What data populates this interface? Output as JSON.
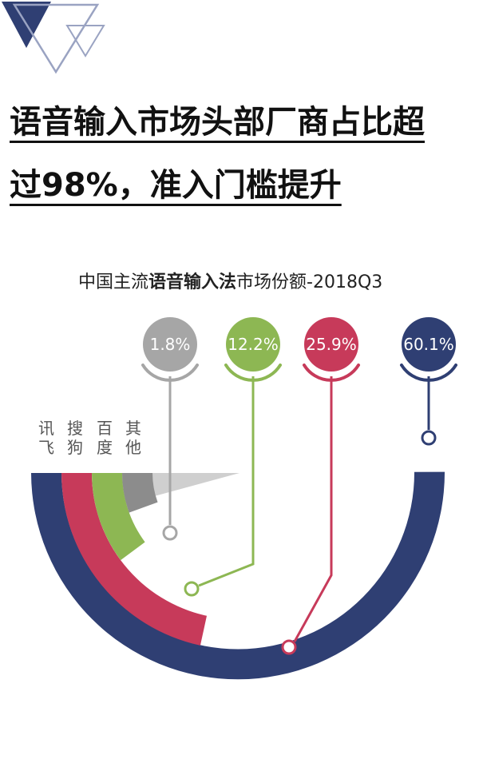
{
  "headline": {
    "line1": "语音输入市场头部厂商占比超",
    "line2": "过98%，准入门槛提升"
  },
  "chart_title": {
    "prefix": "中国主流",
    "bold": "语音输入法",
    "suffix": "市场份额-2018Q3"
  },
  "chart_data": {
    "type": "pie",
    "title": "中国主流语音输入法市场份额-2018Q3",
    "categories": [
      "讯飞",
      "搜狗",
      "百度",
      "其他"
    ],
    "values": [
      60.1,
      25.9,
      12.2,
      1.8
    ],
    "labels": [
      "60.1%",
      "25.9%",
      "12.2%",
      "1.8%"
    ],
    "colors": [
      "#2f3f73",
      "#c73a5a",
      "#8db753",
      "#8c8c8c"
    ]
  },
  "legend": {
    "names": [
      "讯飞",
      "搜狗",
      "百度",
      "其他"
    ]
  },
  "colors": {
    "logo_dark": "#2f3f73",
    "logo_light": "#9aa3c2",
    "other_ring": "#8c8c8c",
    "other_bubble": "#a6a6a6"
  }
}
